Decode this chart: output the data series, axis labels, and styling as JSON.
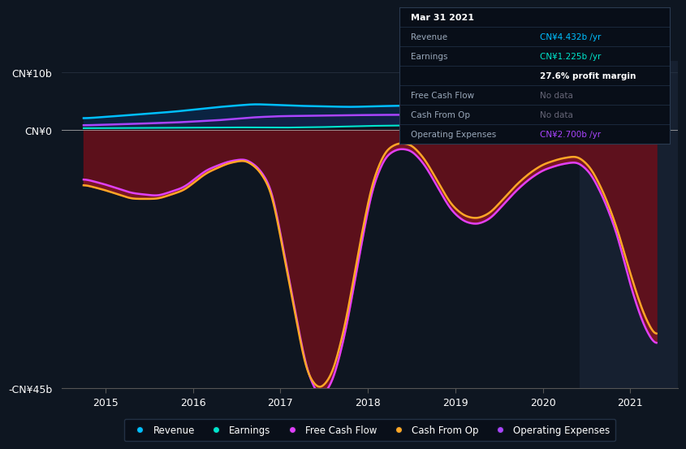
{
  "bg_color": "#0e1621",
  "plot_bg_color": "#0e1621",
  "x_min": 2014.5,
  "x_max": 2021.55,
  "y_min": -45,
  "y_max": 12,
  "ytick_labels": [
    "CN¥10b",
    "CN¥0",
    "-CN¥45b"
  ],
  "ytick_vals": [
    10,
    0,
    -45
  ],
  "xtick_vals": [
    2015,
    2016,
    2017,
    2018,
    2019,
    2020,
    2021
  ],
  "highlight_x_start": 2020.42,
  "highlight_x_end": 2021.55,
  "revenue_color": "#00bfff",
  "earnings_color": "#00e5cc",
  "free_cash_flow_color": "#e040fb",
  "cash_from_op_color": "#ffa726",
  "op_expenses_color": "#aa44ff",
  "zero_line_color": "#aaaaaa",
  "tooltip_bg": "#080e18",
  "tooltip_border": "#2a3a50"
}
